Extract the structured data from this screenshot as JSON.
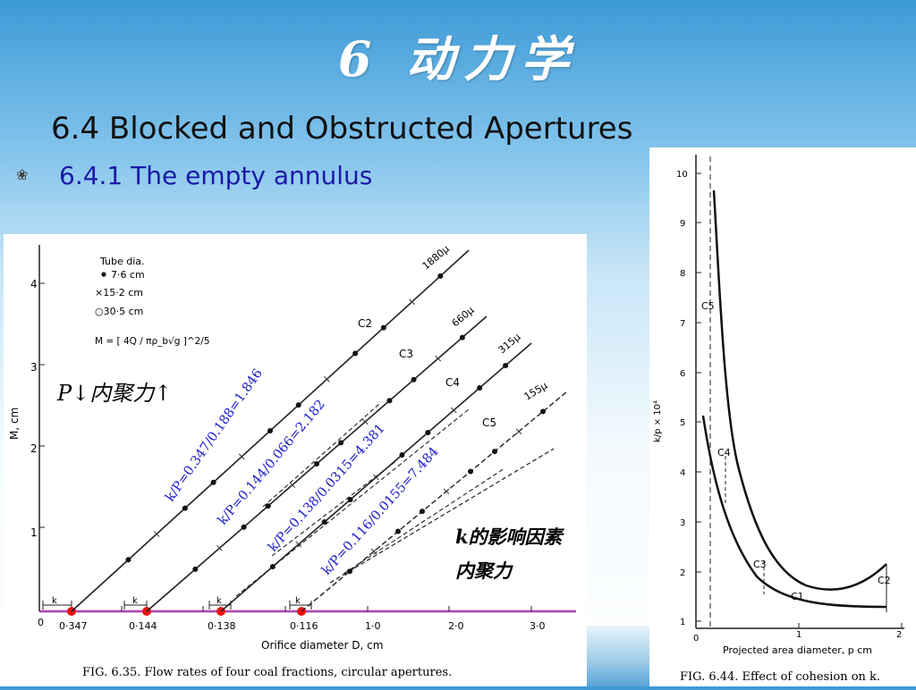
{
  "slide": {
    "title": "6 动力学",
    "heading": "6.4 Blocked and Obstructed Apertures",
    "bullet_icon": "flower-bullet-icon",
    "subheading": "6.4.1 The empty annulus"
  },
  "left_figure": {
    "caption": "FIG. 6.35. Flow rates of four coal fractions, circular apertures.",
    "legend_title": "Tube dia.",
    "legend_items": [
      "7·6 cm",
      "×15·2 cm",
      "○30·5 cm"
    ],
    "formula": "M = [ 4Q / πρ_b√g ]^2/5",
    "ylabel": "M, cm",
    "xlabel": "Orifice diameter D, cm",
    "y_ticks": [
      "1",
      "2",
      "3",
      "4"
    ],
    "x_ticks": [
      "0",
      "1·0",
      "2·0",
      "3·0"
    ],
    "k_label": "k",
    "k_values": [
      "0·347",
      "0·144",
      "0·138",
      "0·116"
    ],
    "k_offsets": [
      0.347,
      0.144,
      0.138,
      0.116
    ],
    "series": [
      {
        "curve": "C2",
        "size": "1880μ"
      },
      {
        "curve": "C3",
        "size": "660μ"
      },
      {
        "curve": "C4",
        "size": "315μ"
      },
      {
        "curve": "C5",
        "size": "155μ"
      }
    ],
    "annotations": {
      "p_note": "P↓内聚力↑",
      "ratios": [
        "k/P=0.347/0.188=1.846",
        "k/P=0.144/0.066=2.182",
        "k/P=0.138/0.0315=4.381",
        "k/P=0.116/0.0155=7.484"
      ],
      "factor_line1": "k的影响因素",
      "factor_line2": "内聚力"
    }
  },
  "right_figure": {
    "caption": "FIG. 6.44. Effect of cohesion on k.",
    "xlabel": "Projected area diameter, p cm",
    "ylabel": "k/p × 10⁴",
    "y_ticks": [
      "1",
      "2",
      "3",
      "4",
      "5",
      "6",
      "7",
      "8",
      "9",
      "10"
    ],
    "x_ticks": [
      "0",
      "1",
      "2"
    ],
    "curve_labels": [
      "C5",
      "C4",
      "C3",
      "C1",
      "C2"
    ]
  },
  "colors": {
    "ratio_text": "#1a1acc",
    "k_marker": "#ee1111",
    "axis_highlight": "#cc44cc"
  }
}
